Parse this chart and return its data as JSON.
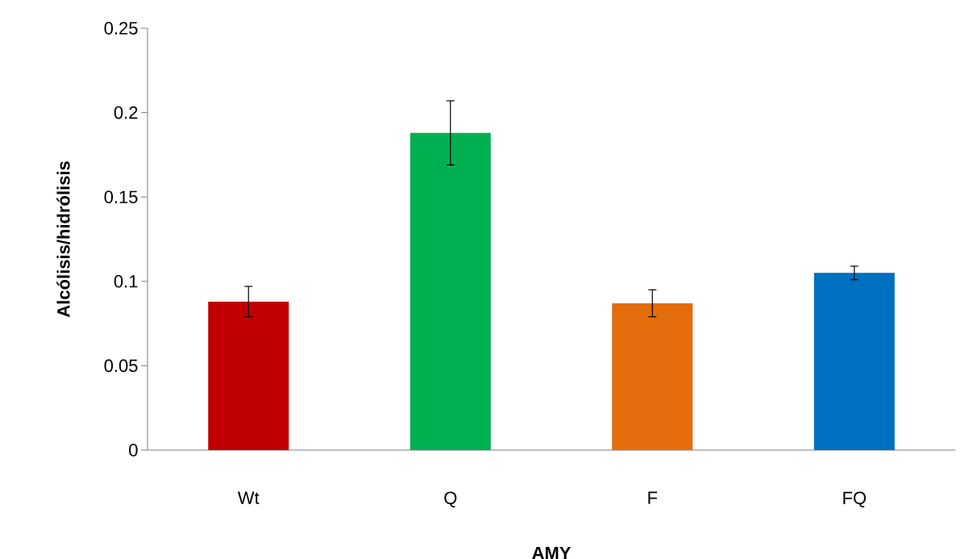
{
  "chart_data": {
    "type": "bar",
    "xlabel": "AMY",
    "ylabel": "Alcólisis/hidrólisis",
    "categories": [
      "Wt",
      "Q",
      "F",
      "FQ"
    ],
    "values": [
      0.088,
      0.188,
      0.087,
      0.105
    ],
    "colors": [
      "#c00000",
      "#00b050",
      "#e46c0a",
      "#0070c0"
    ],
    "errors": [
      0.009,
      0.019,
      0.008,
      0.004
    ],
    "ylim": [
      0,
      0.25
    ],
    "yticks": [
      0,
      0.05,
      0.1,
      0.15,
      0.2,
      0.25
    ],
    "grid": false
  }
}
